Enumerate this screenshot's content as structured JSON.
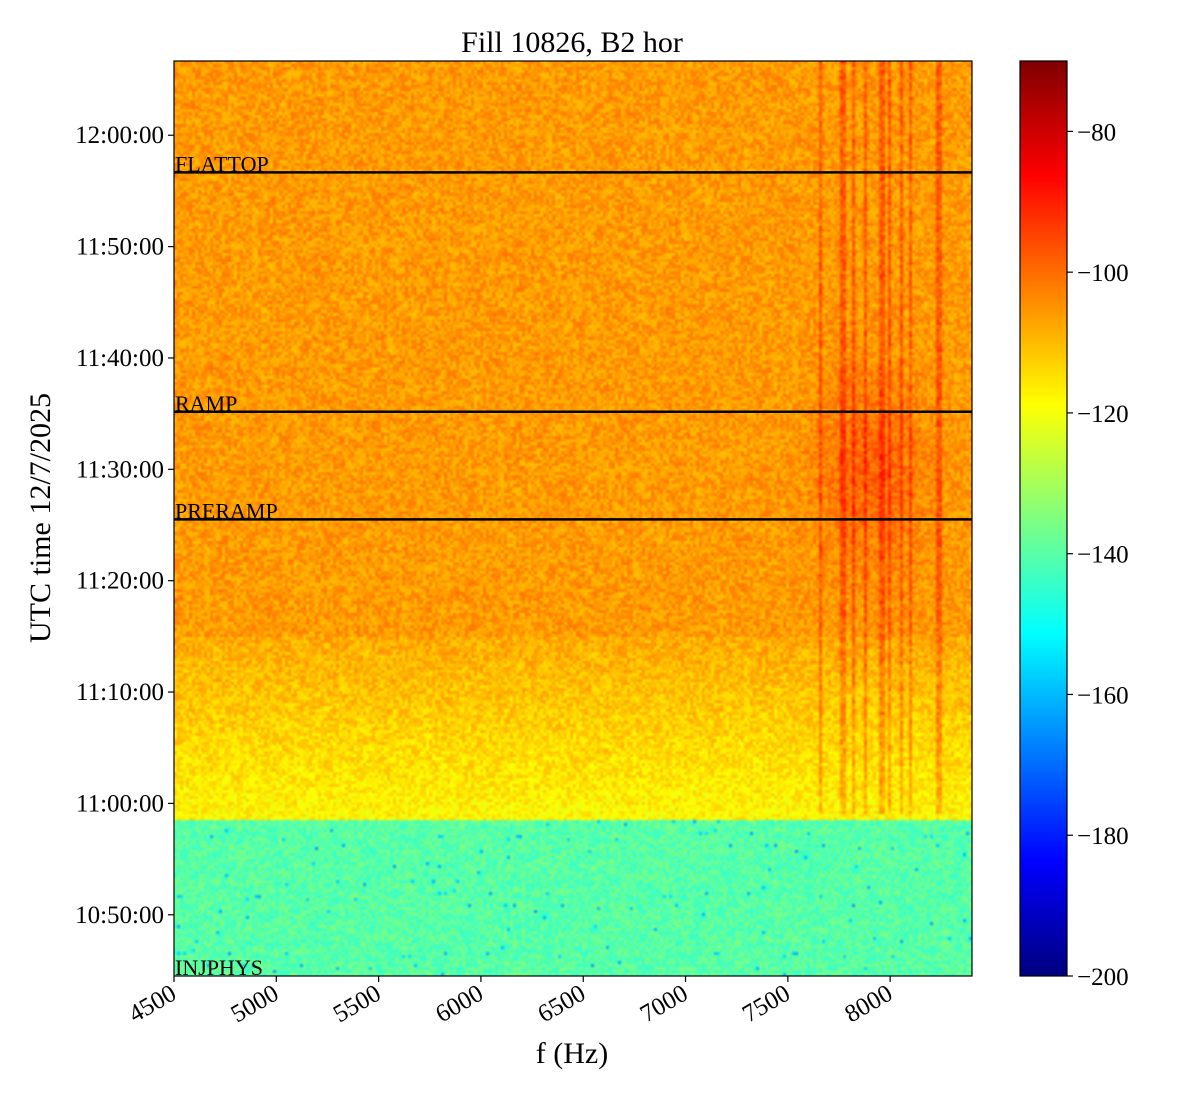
{
  "chart_data": {
    "type": "heatmap",
    "title": "Fill 10826, B2 hor",
    "xlabel": "f (Hz)",
    "ylabel": "UTC time 12/7/2025",
    "xlim": [
      4500,
      8400
    ],
    "x_ticks": [
      4500,
      5000,
      5500,
      6000,
      6500,
      7000,
      7500,
      8000
    ],
    "x_tick_labels": [
      "4500",
      "5000",
      "5500",
      "6000",
      "6500",
      "7000",
      "7500",
      "8000"
    ],
    "y_range_minutes": [
      10.75,
      12.1
    ],
    "y_ticks": [
      {
        "label": "12:00:00",
        "time": "12:00:00"
      },
      {
        "label": "11:50:00",
        "time": "11:50:00"
      },
      {
        "label": "11:40:00",
        "time": "11:40:00"
      },
      {
        "label": "11:30:00",
        "time": "11:30:00"
      },
      {
        "label": "11:20:00",
        "time": "11:20:00"
      },
      {
        "label": "11:10:00",
        "time": "11:10:00"
      },
      {
        "label": "11:00:00",
        "time": "11:00:00"
      },
      {
        "label": "10:50:00",
        "time": "10:50:00"
      }
    ],
    "y_start": "10:44:30",
    "y_end": "12:06:40",
    "phase_markers": [
      {
        "label": "FLATTOP",
        "time": "11:56:40"
      },
      {
        "label": "RAMP",
        "time": "11:35:10"
      },
      {
        "label": "PRERAMP",
        "time": "11:25:30"
      },
      {
        "label": "INJPHYS",
        "time": "10:44:30"
      }
    ],
    "colorbar": {
      "colormap": "jet",
      "min": -200,
      "max": -70,
      "ticks": [
        -80,
        -100,
        -120,
        -140,
        -160,
        -180,
        -200
      ],
      "tick_labels": [
        "−80",
        "−100",
        "−120",
        "−140",
        "−160",
        "−180",
        "−200"
      ]
    },
    "regions": [
      {
        "from": "10:44:30",
        "to": "10:58:30",
        "level_dB": -140
      },
      {
        "from": "10:58:30",
        "to": "11:12:00",
        "level_dB": -118
      },
      {
        "from": "11:12:00",
        "to": "12:06:40",
        "level_dB": -106
      }
    ],
    "spectral_lines_hz": [
      7660,
      7770,
      7820,
      7880,
      7960,
      8000,
      8060,
      8100,
      8230,
      8250
    ]
  }
}
